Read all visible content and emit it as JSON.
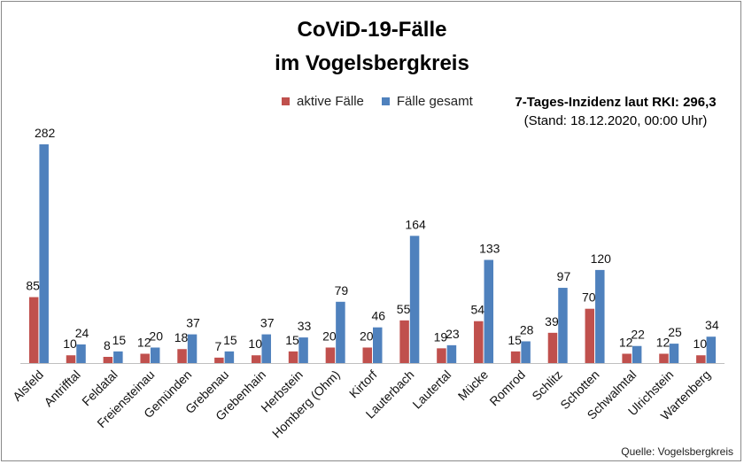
{
  "chart_data": {
    "type": "bar",
    "title": "CoViD-19-Fälle",
    "subtitle": "im Vogelsbergkreis",
    "categories": [
      "Alsfeld",
      "Antrifftal",
      "Feldatal",
      "Freiensteinau",
      "Gemünden",
      "Grebenau",
      "Grebenhain",
      "Herbstein",
      "Homberg (Ohm)",
      "Kirtorf",
      "Lauterbach",
      "Lautertal",
      "Mücke",
      "Romrod",
      "Schlitz",
      "Schotten",
      "Schwalmtal",
      "Ulrichstein",
      "Wartenberg"
    ],
    "series": [
      {
        "name": "aktive Fälle",
        "color": "#c0504d",
        "values": [
          85,
          10,
          8,
          12,
          18,
          7,
          10,
          15,
          20,
          20,
          55,
          19,
          54,
          15,
          39,
          70,
          12,
          12,
          10
        ]
      },
      {
        "name": "Fälle gesamt",
        "color": "#4f81bd",
        "values": [
          282,
          24,
          15,
          20,
          37,
          15,
          37,
          33,
          79,
          46,
          164,
          23,
          133,
          28,
          97,
          120,
          22,
          25,
          34
        ]
      }
    ],
    "ylim": [
      0,
      290
    ],
    "grid": false,
    "legend_position": "top"
  },
  "info": {
    "incidence": "7-Tages-Inzidenz laut RKI: 296,3",
    "stand": "(Stand: 18.12.2020, 00:00 Uhr)"
  },
  "source": "Quelle: Vogelsbergkreis"
}
